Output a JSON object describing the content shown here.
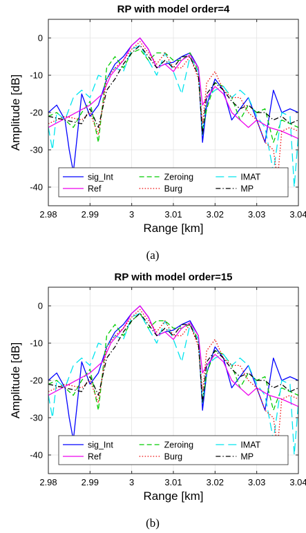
{
  "chart_data": [
    {
      "type": "line",
      "title": "RP with model order=4",
      "caption": "(a)",
      "xlabel": "Range [km]",
      "ylabel": "Amplitude [dB]",
      "xlim": [
        2.98,
        3.04
      ],
      "ylim": [
        -45,
        5
      ],
      "xticks": [
        "2.98",
        "2.99",
        "3",
        "3.01",
        "3.02",
        "3.03",
        "3.04"
      ],
      "yticks": [
        "0",
        "-10",
        "-20",
        "-30",
        "-40"
      ],
      "grid": true,
      "legend": {
        "placement": "bottom",
        "columns": 3
      },
      "series": [
        {
          "name": "sig_Int",
          "color": "#0000ff",
          "dash": "solid",
          "x": [
            2.98,
            2.982,
            2.984,
            2.985,
            2.986,
            2.988,
            2.99,
            2.992,
            2.994,
            2.996,
            2.998,
            3.0,
            3.002,
            3.004,
            3.006,
            3.008,
            3.01,
            3.012,
            3.014,
            3.016,
            3.017,
            3.018,
            3.02,
            3.022,
            3.024,
            3.026,
            3.028,
            3.03,
            3.032,
            3.034,
            3.035,
            3.036,
            3.038,
            3.04
          ],
          "y": [
            -20,
            -18,
            -22,
            -30,
            -36,
            -15,
            -21,
            -18,
            -11,
            -7,
            -5,
            -2,
            0,
            -3,
            -8,
            -7,
            -6.5,
            -5,
            -4,
            -8,
            -28,
            -18,
            -11,
            -14,
            -22,
            -19,
            -16,
            -22,
            -28,
            -14,
            -17,
            -20,
            -19,
            -20
          ]
        },
        {
          "name": "Zeroing",
          "color": "#00cc00",
          "dash": "dashed",
          "x": [
            2.98,
            2.982,
            2.984,
            2.986,
            2.988,
            2.99,
            2.992,
            2.994,
            2.996,
            2.998,
            3.0,
            3.002,
            3.004,
            3.006,
            3.008,
            3.01,
            3.012,
            3.014,
            3.016,
            3.017,
            3.018,
            3.02,
            3.022,
            3.024,
            3.026,
            3.028,
            3.03,
            3.032,
            3.034,
            3.036,
            3.038,
            3.04
          ],
          "y": [
            -21,
            -20,
            -22,
            -24,
            -20,
            -17,
            -28,
            -8,
            -5,
            -8,
            -4,
            -3,
            -6,
            -4,
            -4,
            -6,
            -6,
            -4,
            -9,
            -25,
            -19,
            -12,
            -13,
            -16,
            -22,
            -18,
            -20,
            -19,
            -28,
            -22,
            -23,
            -24
          ]
        },
        {
          "name": "IMAT",
          "color": "#00e5ee",
          "dash": "longdash",
          "x": [
            2.98,
            2.981,
            2.982,
            2.984,
            2.986,
            2.988,
            2.99,
            2.992,
            2.994,
            2.996,
            2.998,
            3.0,
            3.002,
            3.004,
            3.006,
            3.008,
            3.01,
            3.012,
            3.014,
            3.016,
            3.017,
            3.018,
            3.02,
            3.022,
            3.024,
            3.026,
            3.028,
            3.03,
            3.032,
            3.034,
            3.036,
            3.038,
            3.039,
            3.04
          ],
          "y": [
            -24,
            -30,
            -20,
            -22,
            -16,
            -14,
            -16,
            -10,
            -11,
            -8,
            -9,
            -3,
            -2,
            -6,
            -10,
            -4,
            -9,
            -15,
            -5,
            -9,
            -26,
            -16,
            -14,
            -13,
            -16,
            -14,
            -16,
            -21,
            -24,
            -36,
            -20,
            -21,
            -40,
            -26
          ]
        },
        {
          "name": "Ref",
          "color": "#ee00ee",
          "dash": "solid",
          "x": [
            2.98,
            2.985,
            2.99,
            2.993,
            2.995,
            2.998,
            3.0,
            3.002,
            3.004,
            3.006,
            3.008,
            3.01,
            3.012,
            3.014,
            3.016,
            3.017,
            3.018,
            3.02,
            3.022,
            3.024,
            3.026,
            3.028,
            3.03,
            3.033,
            3.036,
            3.038,
            3.04
          ],
          "y": [
            -24,
            -21,
            -18,
            -15,
            -10,
            -6,
            -2,
            0,
            -3,
            -8,
            -7,
            -9,
            -6,
            -4.5,
            -8,
            -18,
            -16,
            -13,
            -15,
            -20,
            -22,
            -24,
            -22,
            -24,
            -25,
            -26,
            -27
          ]
        },
        {
          "name": "Burg",
          "color": "#ee0000",
          "dash": "dotted",
          "x": [
            2.98,
            2.984,
            2.988,
            2.99,
            2.992,
            2.994,
            2.996,
            2.998,
            3.0,
            3.002,
            3.004,
            3.006,
            3.008,
            3.01,
            3.012,
            3.014,
            3.016,
            3.017,
            3.018,
            3.02,
            3.022,
            3.024,
            3.026,
            3.028,
            3.03,
            3.032,
            3.034,
            3.035,
            3.036,
            3.038,
            3.04
          ],
          "y": [
            -23,
            -21,
            -22,
            -20,
            -26,
            -11,
            -8,
            -6,
            -3,
            -1,
            -4,
            -7,
            -4,
            -8,
            -8,
            -5,
            -11,
            -23,
            -12,
            -9,
            -14,
            -16,
            -16,
            -20,
            -22,
            -28,
            -30,
            -38,
            -25,
            -24,
            -25
          ]
        },
        {
          "name": "MP",
          "color": "#000000",
          "dash": "dashdot",
          "x": [
            2.98,
            2.984,
            2.988,
            2.99,
            2.992,
            2.994,
            2.996,
            2.998,
            3.0,
            3.002,
            3.004,
            3.006,
            3.008,
            3.01,
            3.012,
            3.014,
            3.016,
            3.017,
            3.018,
            3.02,
            3.022,
            3.024,
            3.026,
            3.028,
            3.03,
            3.032,
            3.034,
            3.036,
            3.038,
            3.04
          ],
          "y": [
            -21,
            -22,
            -23,
            -19,
            -24,
            -14,
            -11,
            -7,
            -4,
            -2,
            -5,
            -8,
            -6,
            -8,
            -5,
            -5,
            -10,
            -26,
            -15,
            -12,
            -14,
            -17,
            -19,
            -18,
            -20,
            -20,
            -22,
            -21,
            -23,
            -22
          ]
        }
      ]
    },
    {
      "type": "line",
      "title": "RP with model order=15",
      "caption": "(b)",
      "xlabel": "Range [km]",
      "ylabel": "Amplitude [dB]",
      "xlim": [
        2.98,
        3.04
      ],
      "ylim": [
        -45,
        5
      ],
      "xticks": [
        "2.98",
        "2.99",
        "3",
        "3.01",
        "3.02",
        "3.03",
        "3.04"
      ],
      "yticks": [
        "0",
        "-10",
        "-20",
        "-30",
        "-40"
      ],
      "grid": true,
      "legend": {
        "placement": "bottom",
        "columns": 3
      },
      "series": [
        {
          "name": "sig_Int",
          "color": "#0000ff",
          "dash": "solid",
          "x": [
            2.98,
            2.982,
            2.984,
            2.985,
            2.986,
            2.988,
            2.99,
            2.992,
            2.994,
            2.996,
            2.998,
            3.0,
            3.002,
            3.004,
            3.006,
            3.008,
            3.01,
            3.012,
            3.014,
            3.016,
            3.017,
            3.018,
            3.02,
            3.022,
            3.024,
            3.026,
            3.028,
            3.03,
            3.032,
            3.034,
            3.035,
            3.036,
            3.038,
            3.04
          ],
          "y": [
            -20,
            -18,
            -22,
            -30,
            -36,
            -15,
            -21,
            -18,
            -11,
            -7,
            -5,
            -2,
            0,
            -3,
            -8,
            -7,
            -6.5,
            -5,
            -4,
            -8,
            -28,
            -18,
            -11,
            -14,
            -22,
            -19,
            -16,
            -22,
            -28,
            -14,
            -17,
            -20,
            -19,
            -20
          ]
        },
        {
          "name": "Zeroing",
          "color": "#00cc00",
          "dash": "dashed",
          "x": [
            2.98,
            2.982,
            2.984,
            2.986,
            2.988,
            2.99,
            2.992,
            2.994,
            2.996,
            2.998,
            3.0,
            3.002,
            3.004,
            3.006,
            3.008,
            3.01,
            3.012,
            3.014,
            3.016,
            3.017,
            3.018,
            3.02,
            3.022,
            3.024,
            3.026,
            3.028,
            3.03,
            3.032,
            3.034,
            3.036,
            3.038,
            3.04
          ],
          "y": [
            -21,
            -20,
            -22,
            -24,
            -20,
            -17,
            -28,
            -8,
            -5,
            -8,
            -4,
            -2,
            -6,
            -4,
            -4,
            -6,
            -6,
            -5,
            -9,
            -26,
            -18,
            -12,
            -13,
            -16,
            -22,
            -18,
            -20,
            -19,
            -28,
            -22,
            -23,
            -24
          ]
        },
        {
          "name": "IMAT",
          "color": "#00e5ee",
          "dash": "longdash",
          "x": [
            2.98,
            2.981,
            2.982,
            2.984,
            2.986,
            2.988,
            2.99,
            2.992,
            2.994,
            2.996,
            2.998,
            3.0,
            3.002,
            3.004,
            3.006,
            3.008,
            3.01,
            3.012,
            3.014,
            3.016,
            3.017,
            3.018,
            3.02,
            3.022,
            3.024,
            3.026,
            3.028,
            3.03,
            3.032,
            3.034,
            3.036,
            3.038,
            3.039,
            3.04
          ],
          "y": [
            -24,
            -30,
            -20,
            -22,
            -16,
            -14,
            -16,
            -10,
            -11,
            -8,
            -9,
            -3,
            -2,
            -6,
            -10,
            -4,
            -9,
            -15,
            -5,
            -9,
            -26,
            -16,
            -14,
            -13,
            -16,
            -14,
            -16,
            -21,
            -24,
            -36,
            -20,
            -21,
            -40,
            -26
          ]
        },
        {
          "name": "Ref",
          "color": "#ee00ee",
          "dash": "solid",
          "x": [
            2.98,
            2.985,
            2.99,
            2.993,
            2.995,
            2.998,
            3.0,
            3.002,
            3.004,
            3.006,
            3.008,
            3.01,
            3.012,
            3.014,
            3.016,
            3.017,
            3.018,
            3.02,
            3.022,
            3.024,
            3.026,
            3.028,
            3.03,
            3.033,
            3.036,
            3.038,
            3.04
          ],
          "y": [
            -24,
            -21,
            -18,
            -15,
            -10,
            -6,
            -2,
            0,
            -3,
            -8,
            -7,
            -9,
            -6,
            -4.5,
            -8,
            -18,
            -16,
            -13,
            -15,
            -20,
            -22,
            -24,
            -22,
            -24,
            -25,
            -26,
            -27
          ]
        },
        {
          "name": "Burg",
          "color": "#ee0000",
          "dash": "dotted",
          "x": [
            2.98,
            2.984,
            2.988,
            2.99,
            2.992,
            2.994,
            2.996,
            2.998,
            3.0,
            3.002,
            3.004,
            3.006,
            3.008,
            3.01,
            3.012,
            3.014,
            3.016,
            3.017,
            3.018,
            3.02,
            3.022,
            3.024,
            3.026,
            3.028,
            3.03,
            3.032,
            3.034,
            3.035,
            3.036,
            3.038,
            3.04
          ],
          "y": [
            -23,
            -21,
            -22,
            -20,
            -26,
            -11,
            -8,
            -6,
            -3,
            -1,
            -4,
            -7,
            -4,
            -8,
            -8,
            -5,
            -11,
            -23,
            -12,
            -9,
            -14,
            -16,
            -16,
            -20,
            -22,
            -28,
            -30,
            -38,
            -25,
            -24,
            -25
          ]
        },
        {
          "name": "MP",
          "color": "#000000",
          "dash": "dashdot",
          "x": [
            2.98,
            2.984,
            2.988,
            2.99,
            2.992,
            2.994,
            2.996,
            2.998,
            3.0,
            3.002,
            3.004,
            3.006,
            3.008,
            3.01,
            3.012,
            3.014,
            3.016,
            3.017,
            3.018,
            3.02,
            3.022,
            3.024,
            3.026,
            3.028,
            3.03,
            3.032,
            3.034,
            3.036,
            3.038,
            3.04
          ],
          "y": [
            -21,
            -22,
            -23,
            -19,
            -24,
            -14,
            -11,
            -7,
            -4,
            -2,
            -5,
            -8,
            -6,
            -8,
            -5,
            -5,
            -10,
            -26,
            -15,
            -12,
            -14,
            -17,
            -19,
            -18,
            -20,
            -20,
            -22,
            -21,
            -23,
            -22
          ]
        }
      ]
    }
  ]
}
